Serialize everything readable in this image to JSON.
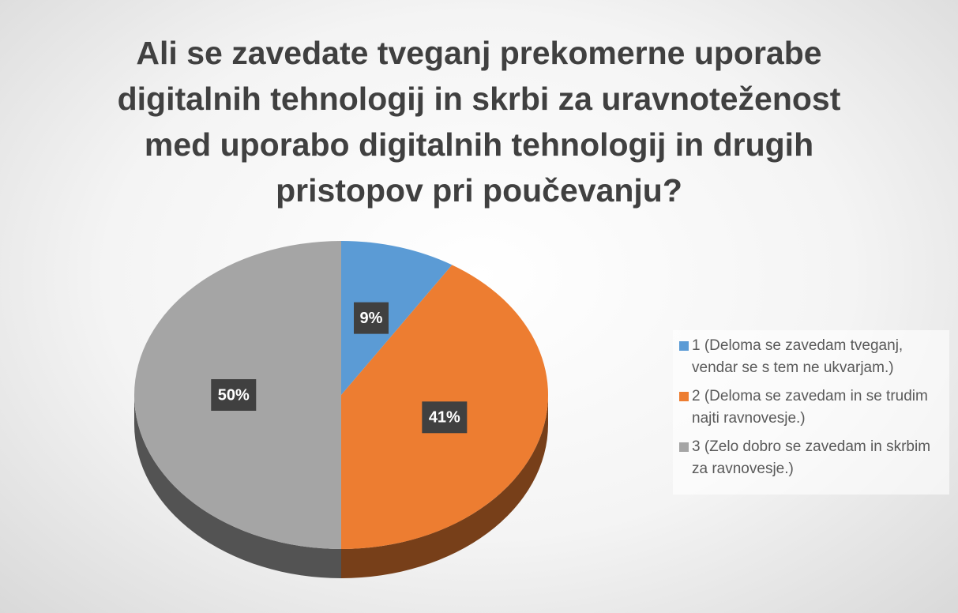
{
  "chart_data": {
    "type": "pie",
    "title": "Ali se zavedate tveganj prekomerne uporabe digitalnih tehnologij in skrbi za uravnoteženost med uporabo digitalnih tehnologij in drugih pristopov pri poučevanju?",
    "categories": [
      "1 (Deloma se zavedam tveganj, vendar se s tem ne ukvarjam.)",
      "2 (Deloma se zavedam in se trudim najti ravnovesje.)",
      "3 (Zelo dobro se zavedam in skrbim za ravnovesje.)"
    ],
    "values": [
      9,
      41,
      50
    ],
    "value_labels": [
      "9%",
      "41%",
      "50%"
    ],
    "colors": [
      "#5b9bd5",
      "#ed7d31",
      "#a5a5a5"
    ],
    "legend": "right"
  }
}
